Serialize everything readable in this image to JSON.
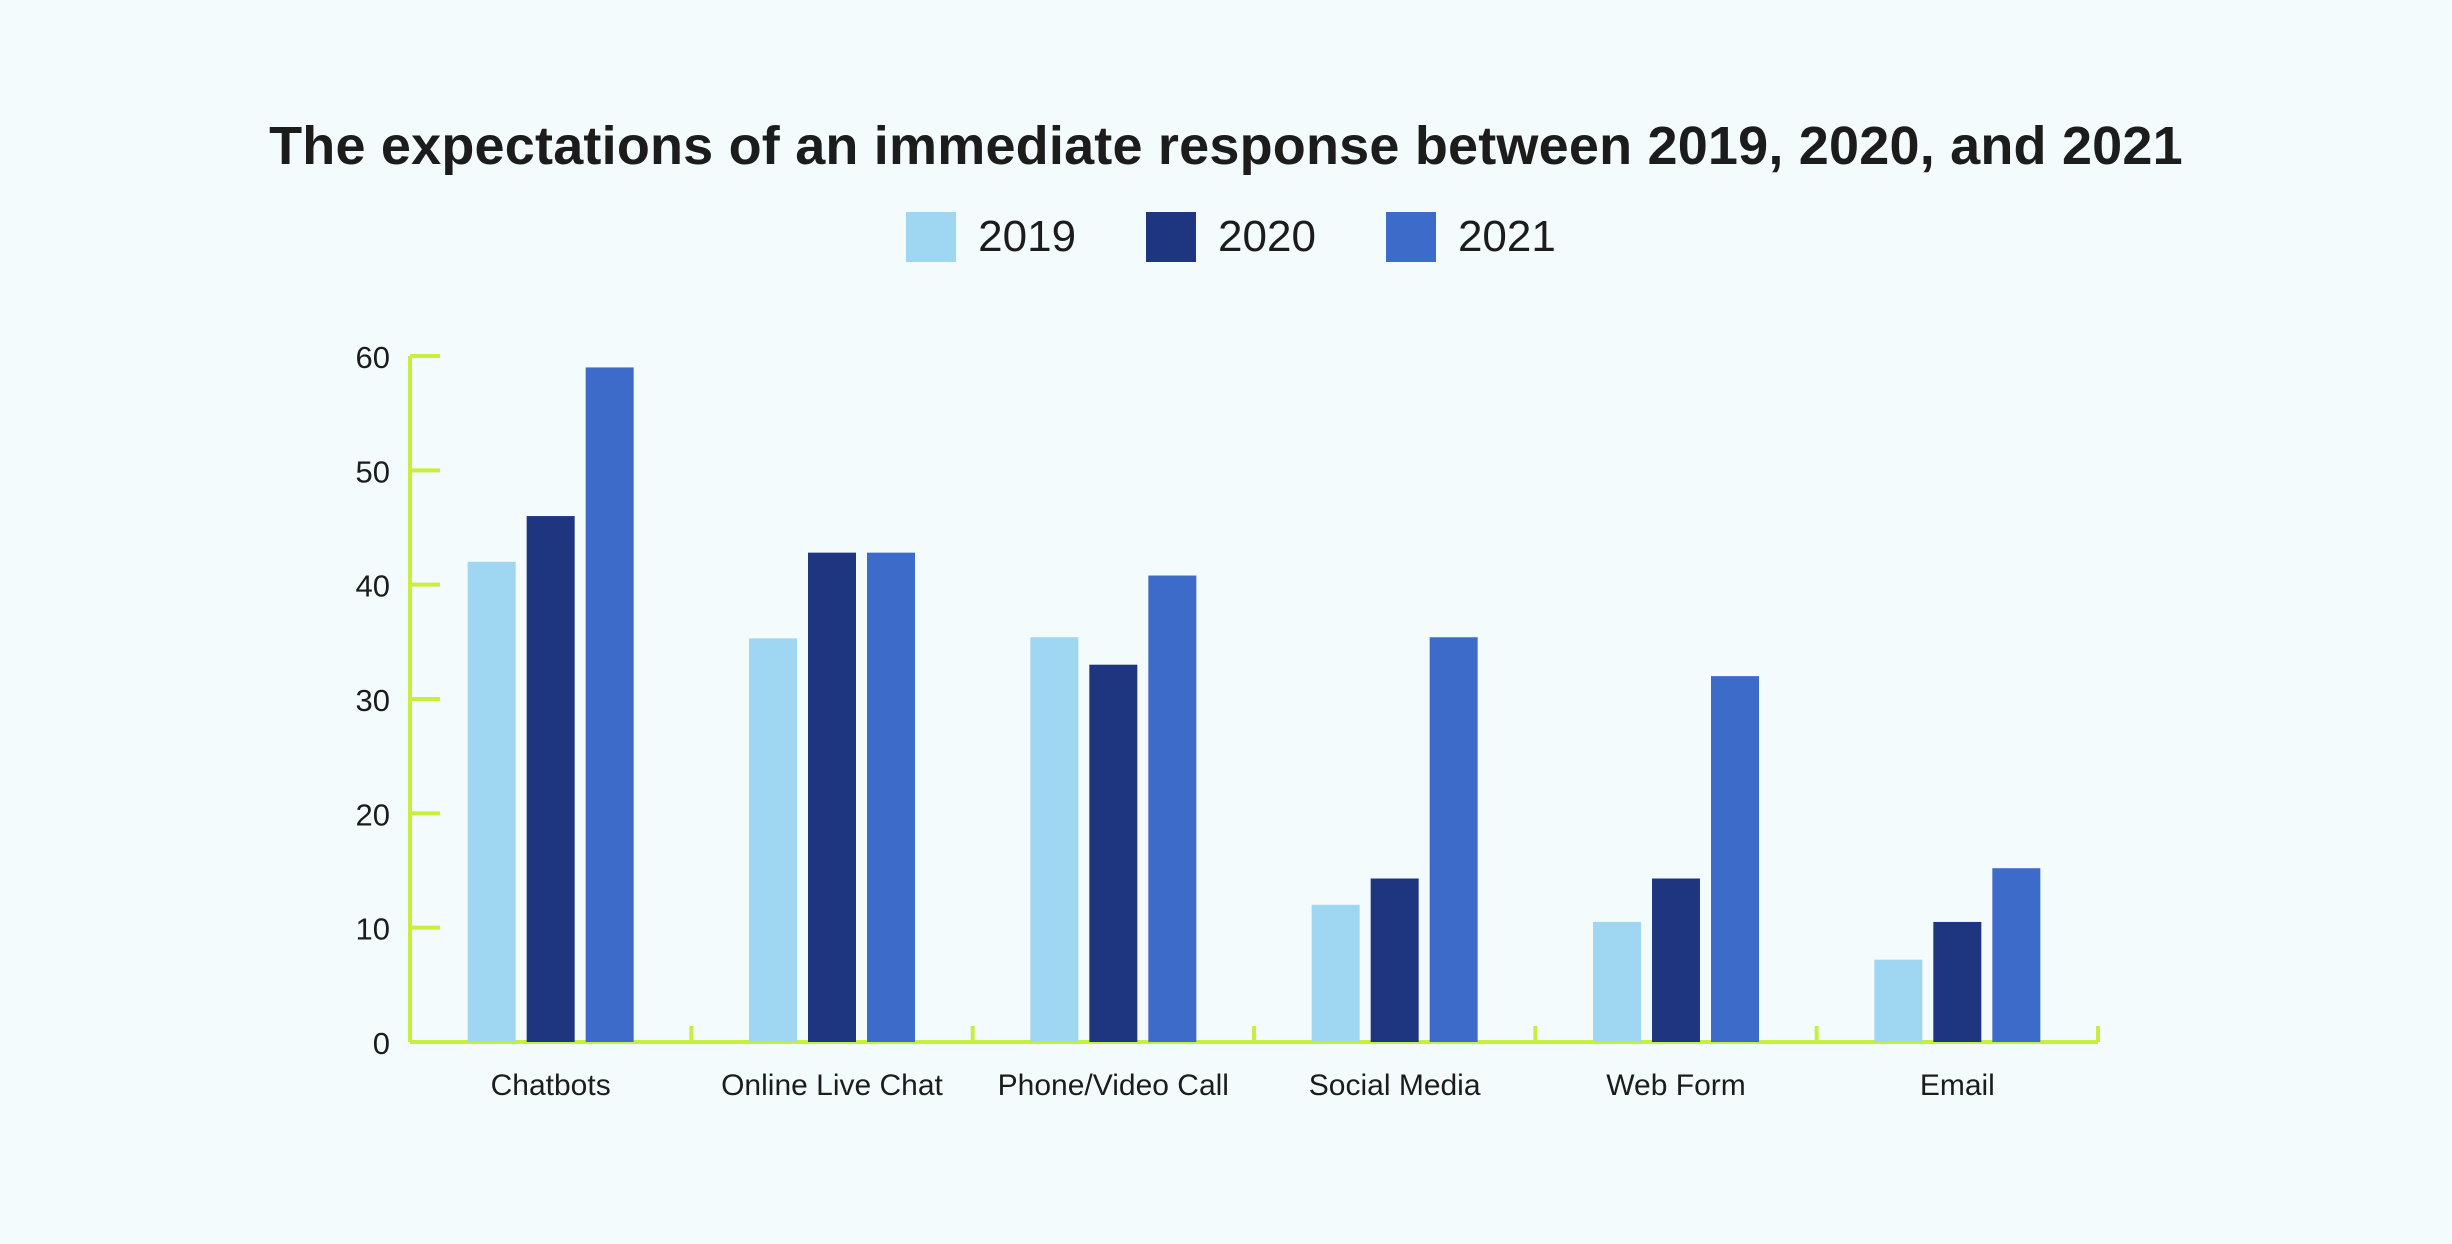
{
  "chart_data": {
    "type": "bar",
    "title": "The expectations of an immediate response between 2019, 2020, and 2021",
    "categories": [
      "Chatbots",
      "Online Live Chat",
      "Phone/Video Call",
      "Social Media",
      "Web Form",
      "Email"
    ],
    "series": [
      {
        "name": "2019",
        "color": "#9fd6f2",
        "values": [
          42,
          35.3,
          35.4,
          12,
          10.5,
          7.2
        ]
      },
      {
        "name": "2020",
        "color": "#1e3580",
        "values": [
          46,
          42.8,
          33,
          14.3,
          14.3,
          10.5
        ]
      },
      {
        "name": "2021",
        "color": "#3d6bc9",
        "values": [
          59,
          42.8,
          40.8,
          35.4,
          32,
          15.2
        ]
      }
    ],
    "yticks": [
      0,
      10,
      20,
      30,
      40,
      50,
      60
    ],
    "ylim": [
      0,
      60
    ],
    "xlabel": "",
    "ylabel": "",
    "axis_color": "#c6f03c",
    "legend_position": "top-center",
    "grid": false
  }
}
